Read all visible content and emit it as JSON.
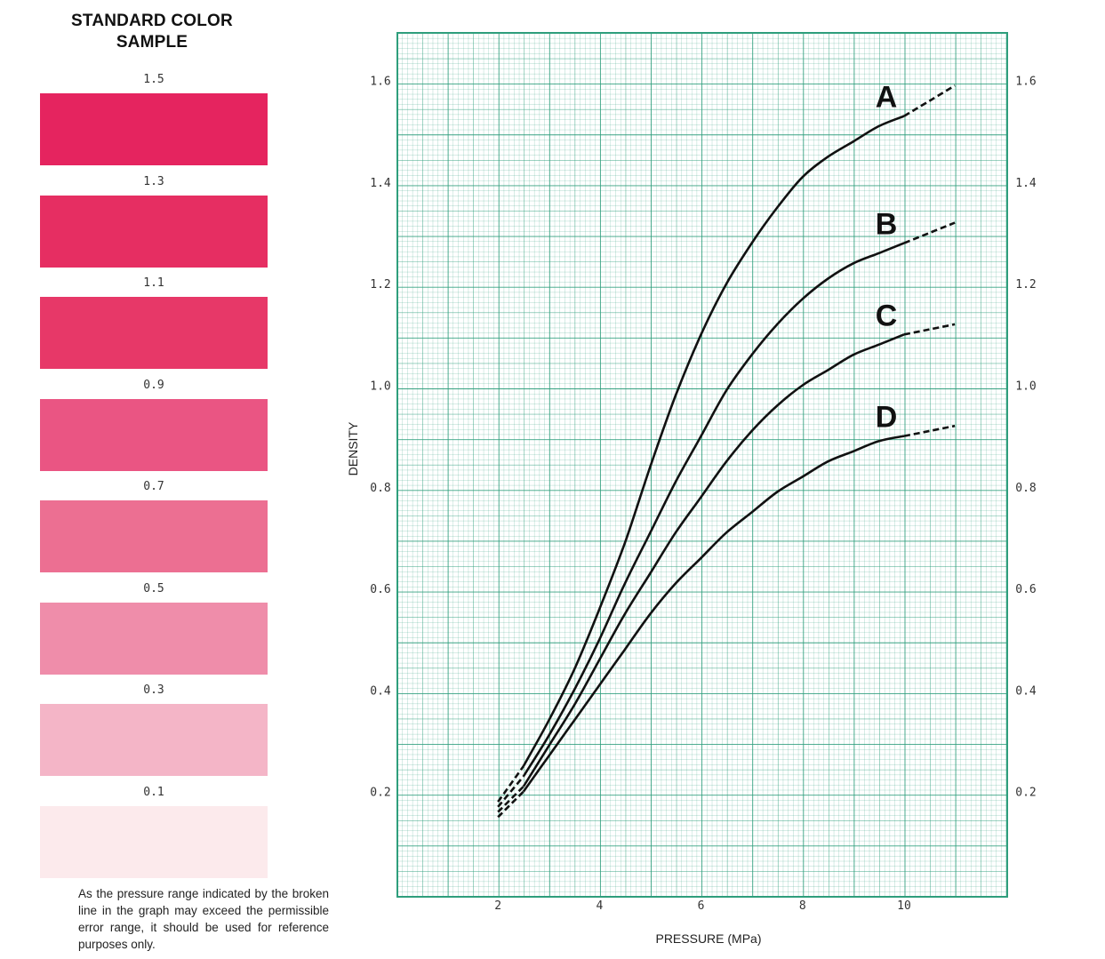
{
  "swatches": {
    "title": "STANDARD COLOR SAMPLE",
    "items": [
      {
        "label": "1.5",
        "color": "#E5245F"
      },
      {
        "label": "1.3",
        "color": "#E62E62"
      },
      {
        "label": "1.1",
        "color": "#E73868"
      },
      {
        "label": "0.9",
        "color": "#EA5583"
      },
      {
        "label": "0.7",
        "color": "#EC6F92"
      },
      {
        "label": "0.5",
        "color": "#EF8DAA"
      },
      {
        "label": "0.3",
        "color": "#F4B5C7"
      },
      {
        "label": "0.1",
        "color": "#FCEAEC"
      }
    ]
  },
  "note": "As the pressure range indicated by the broken line in the graph may exceed the permissible error range, it should be used for reference purposes only.",
  "chart_data": {
    "type": "line",
    "xlabel": "PRESSURE (MPa)",
    "ylabel": "DENSITY",
    "xlim": [
      0,
      12
    ],
    "ylim": [
      0,
      1.7
    ],
    "xticks": [
      2,
      4,
      6,
      8,
      10
    ],
    "yticks": [
      0.2,
      0.4,
      0.6,
      0.8,
      1.0,
      1.2,
      1.4,
      1.6
    ],
    "ytick_labels": [
      "0.2",
      "0.4",
      "0.6",
      "0.8",
      "1.0",
      "1.2",
      "1.4",
      "1.6"
    ],
    "xtick_labels": [
      "2",
      "4",
      "6",
      "8",
      "10"
    ],
    "grid": true,
    "grid_color": "#2E9E7C",
    "solid_range": [
      2.5,
      10
    ],
    "series": [
      {
        "name": "A",
        "x": [
          2,
          2.5,
          3,
          3.5,
          4,
          4.5,
          5,
          5.5,
          6,
          6.5,
          7,
          7.5,
          8,
          8.5,
          9,
          9.5,
          10,
          10.5,
          11
        ],
        "y": [
          0.18,
          0.25,
          0.34,
          0.44,
          0.56,
          0.69,
          0.84,
          0.98,
          1.1,
          1.2,
          1.28,
          1.35,
          1.41,
          1.45,
          1.48,
          1.51,
          1.53,
          1.56,
          1.59
        ]
      },
      {
        "name": "B",
        "x": [
          2,
          2.5,
          3,
          3.5,
          4,
          4.5,
          5,
          5.5,
          6,
          6.5,
          7,
          7.5,
          8,
          8.5,
          9,
          9.5,
          10,
          10.5,
          11
        ],
        "y": [
          0.17,
          0.23,
          0.31,
          0.4,
          0.5,
          0.61,
          0.71,
          0.81,
          0.9,
          0.99,
          1.06,
          1.12,
          1.17,
          1.21,
          1.24,
          1.26,
          1.28,
          1.3,
          1.32
        ]
      },
      {
        "name": "C",
        "x": [
          2,
          2.5,
          3,
          3.5,
          4,
          4.5,
          5,
          5.5,
          6,
          6.5,
          7,
          7.5,
          8,
          8.5,
          9,
          9.5,
          10,
          10.5,
          11
        ],
        "y": [
          0.16,
          0.21,
          0.29,
          0.37,
          0.46,
          0.55,
          0.63,
          0.71,
          0.78,
          0.85,
          0.91,
          0.96,
          1.0,
          1.03,
          1.06,
          1.08,
          1.1,
          1.11,
          1.12
        ]
      },
      {
        "name": "D",
        "x": [
          2,
          2.5,
          3,
          3.5,
          4,
          4.5,
          5,
          5.5,
          6,
          6.5,
          7,
          7.5,
          8,
          8.5,
          9,
          9.5,
          10,
          10.5,
          11
        ],
        "y": [
          0.15,
          0.2,
          0.27,
          0.34,
          0.41,
          0.48,
          0.55,
          0.61,
          0.66,
          0.71,
          0.75,
          0.79,
          0.82,
          0.85,
          0.87,
          0.89,
          0.9,
          0.91,
          0.92
        ]
      }
    ]
  }
}
